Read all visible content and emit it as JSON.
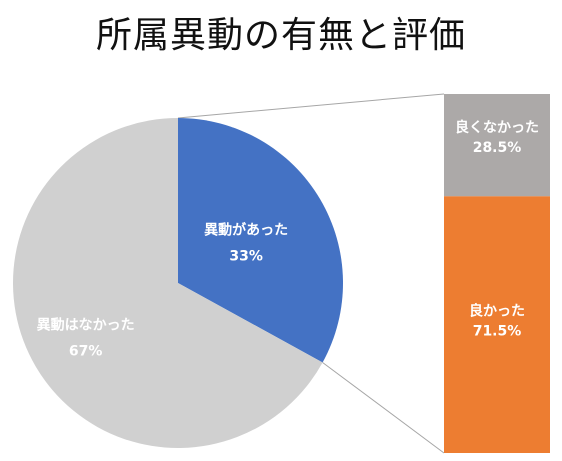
{
  "chart_data": {
    "type": "bar-of-pie",
    "title": "所属異動の有無と評価",
    "pie": {
      "slices": [
        {
          "label": "異動があった",
          "value": 33,
          "value_label": "33%",
          "color": "#4472C4"
        },
        {
          "label": "異動はなかった",
          "value": 67,
          "value_label": "67%",
          "color": "#D0D0D0"
        }
      ]
    },
    "bar": {
      "source_slice": "異動があった",
      "segments": [
        {
          "label": "良くなかった",
          "value": 28.5,
          "value_label": "28.5%",
          "color": "#ACA9A8"
        },
        {
          "label": "良かった",
          "value": 71.5,
          "value_label": "71.5%",
          "color": "#ED7D31"
        }
      ]
    },
    "connector_color": "#A6A6A6"
  }
}
